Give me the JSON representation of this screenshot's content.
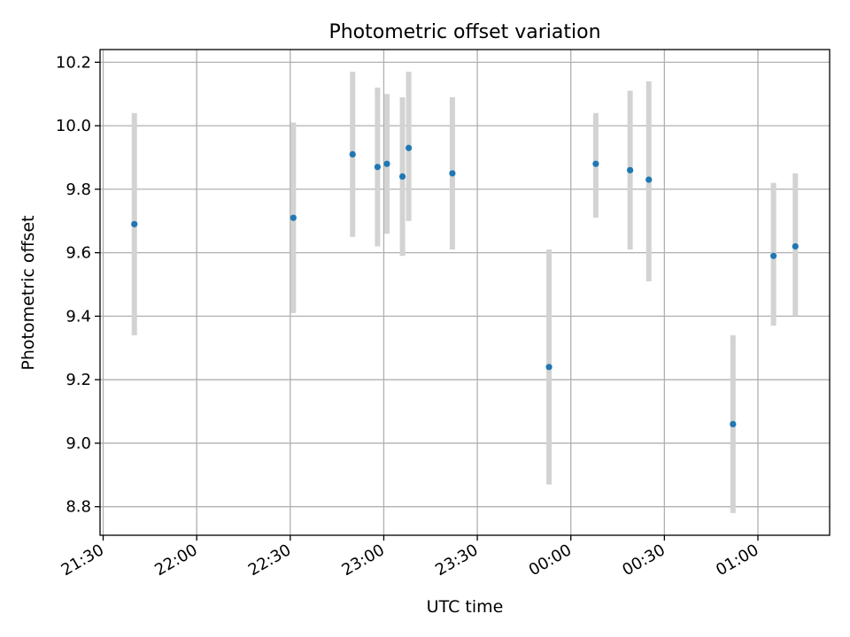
{
  "chart_data": {
    "type": "scatter",
    "title": "Photometric offset variation",
    "xlabel": "UTC time",
    "ylabel": "Photometric offset",
    "x_axis_kind": "time",
    "xlim": [
      "21:29",
      "01:23"
    ],
    "ylim": [
      8.71,
      10.24
    ],
    "x_ticks": [
      "21:30",
      "22:00",
      "22:30",
      "23:00",
      "23:30",
      "00:00",
      "00:30",
      "01:00"
    ],
    "y_ticks": [
      8.8,
      9.0,
      9.2,
      9.4,
      9.6,
      9.8,
      10.0,
      10.2
    ],
    "grid": true,
    "marker_color": "#1f77b4",
    "errorbar_color": "#d3d3d3",
    "points": [
      {
        "t": "21:40",
        "y": 9.69,
        "err_low": 9.34,
        "err_high": 10.04
      },
      {
        "t": "22:31",
        "y": 9.71,
        "err_low": 9.41,
        "err_high": 10.01
      },
      {
        "t": "22:50",
        "y": 9.91,
        "err_low": 9.65,
        "err_high": 10.17
      },
      {
        "t": "22:58",
        "y": 9.87,
        "err_low": 9.62,
        "err_high": 10.12
      },
      {
        "t": "23:01",
        "y": 9.88,
        "err_low": 9.66,
        "err_high": 10.1
      },
      {
        "t": "23:06",
        "y": 9.84,
        "err_low": 9.59,
        "err_high": 10.09
      },
      {
        "t": "23:08",
        "y": 9.93,
        "err_low": 9.7,
        "err_high": 10.17
      },
      {
        "t": "23:22",
        "y": 9.85,
        "err_low": 9.61,
        "err_high": 10.09
      },
      {
        "t": "23:53",
        "y": 9.24,
        "err_low": 8.87,
        "err_high": 9.61
      },
      {
        "t": "00:08",
        "y": 9.88,
        "err_low": 9.71,
        "err_high": 10.04
      },
      {
        "t": "00:19",
        "y": 9.86,
        "err_low": 9.61,
        "err_high": 10.11
      },
      {
        "t": "00:25",
        "y": 9.83,
        "err_low": 9.51,
        "err_high": 10.14
      },
      {
        "t": "00:52",
        "y": 9.06,
        "err_low": 8.78,
        "err_high": 9.34
      },
      {
        "t": "01:05",
        "y": 9.59,
        "err_low": 9.37,
        "err_high": 9.82
      },
      {
        "t": "01:12",
        "y": 9.62,
        "err_low": 9.4,
        "err_high": 9.85
      }
    ]
  }
}
